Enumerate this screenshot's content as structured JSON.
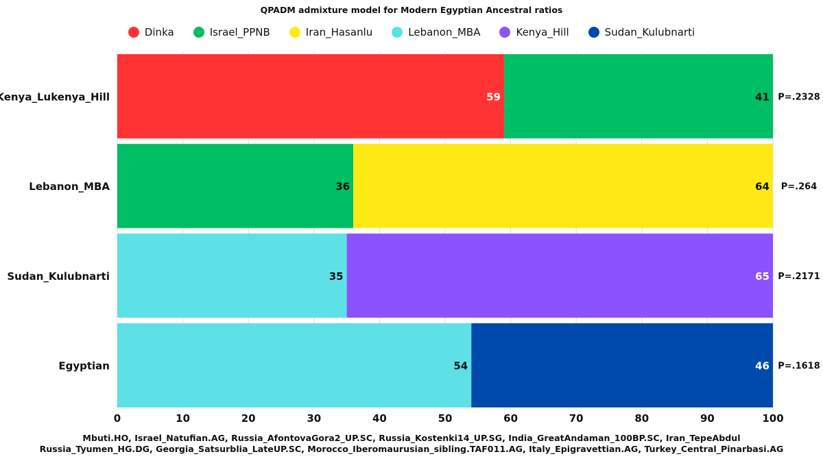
{
  "chart_data": {
    "type": "bar",
    "orientation": "horizontal",
    "stacked": true,
    "title": "QPADM admixture model for Modern Egyptian Ancestral ratios",
    "categories": [
      "Kenya_Lukenya_Hill",
      "Lebanon_MBA",
      "Sudan_Kulubnarti",
      "Egyptian"
    ],
    "series": [
      {
        "name": "Dinka",
        "color": "#ff3333",
        "values": [
          59,
          0,
          0,
          0
        ]
      },
      {
        "name": "Israel_PPNB",
        "color": "#00be63",
        "values": [
          41,
          36,
          0,
          0
        ]
      },
      {
        "name": "Iran_Hasanlu",
        "color": "#fdea15",
        "values": [
          0,
          64,
          0,
          0
        ]
      },
      {
        "name": "Lebanon_MBA",
        "color": "#5ee1e6",
        "values": [
          0,
          0,
          35,
          54
        ]
      },
      {
        "name": "Kenya_Hill",
        "color": "#8c52ff",
        "values": [
          0,
          0,
          65,
          0
        ]
      },
      {
        "name": "Sudan_Kulubnarti",
        "color": "#004aad",
        "values": [
          0,
          0,
          0,
          46
        ]
      }
    ],
    "p_values": [
      "P=.2328",
      "P=.264",
      "P=.2171",
      "P=.1618"
    ],
    "xlim": [
      0,
      100
    ],
    "xticks": [
      "0",
      "10",
      "20",
      "30",
      "40",
      "50",
      "60",
      "70",
      "80",
      "90",
      "100"
    ],
    "grid": true,
    "legend_position": "top"
  },
  "footer": {
    "line1": "Mbuti.HO, Israel_Natufian.AG, Russia_AfontovaGora2_UP.SC, Russia_Kostenki14_UP.SG, India_GreatAndaman_100BP.SC, Iran_TepeAbdul",
    "line2": "Russia_Tyumen_HG.DG, Georgia_Satsurblia_LateUP.SC, Morocco_Iberomaurusian_sibling.TAF011.AG, Italy_Epigravettian.AG, Turkey_Central_Pinarbasi.AG"
  },
  "colors": {
    "label_dark": "#111111",
    "label_light": "#ffffff",
    "grid": "#dddddd"
  }
}
